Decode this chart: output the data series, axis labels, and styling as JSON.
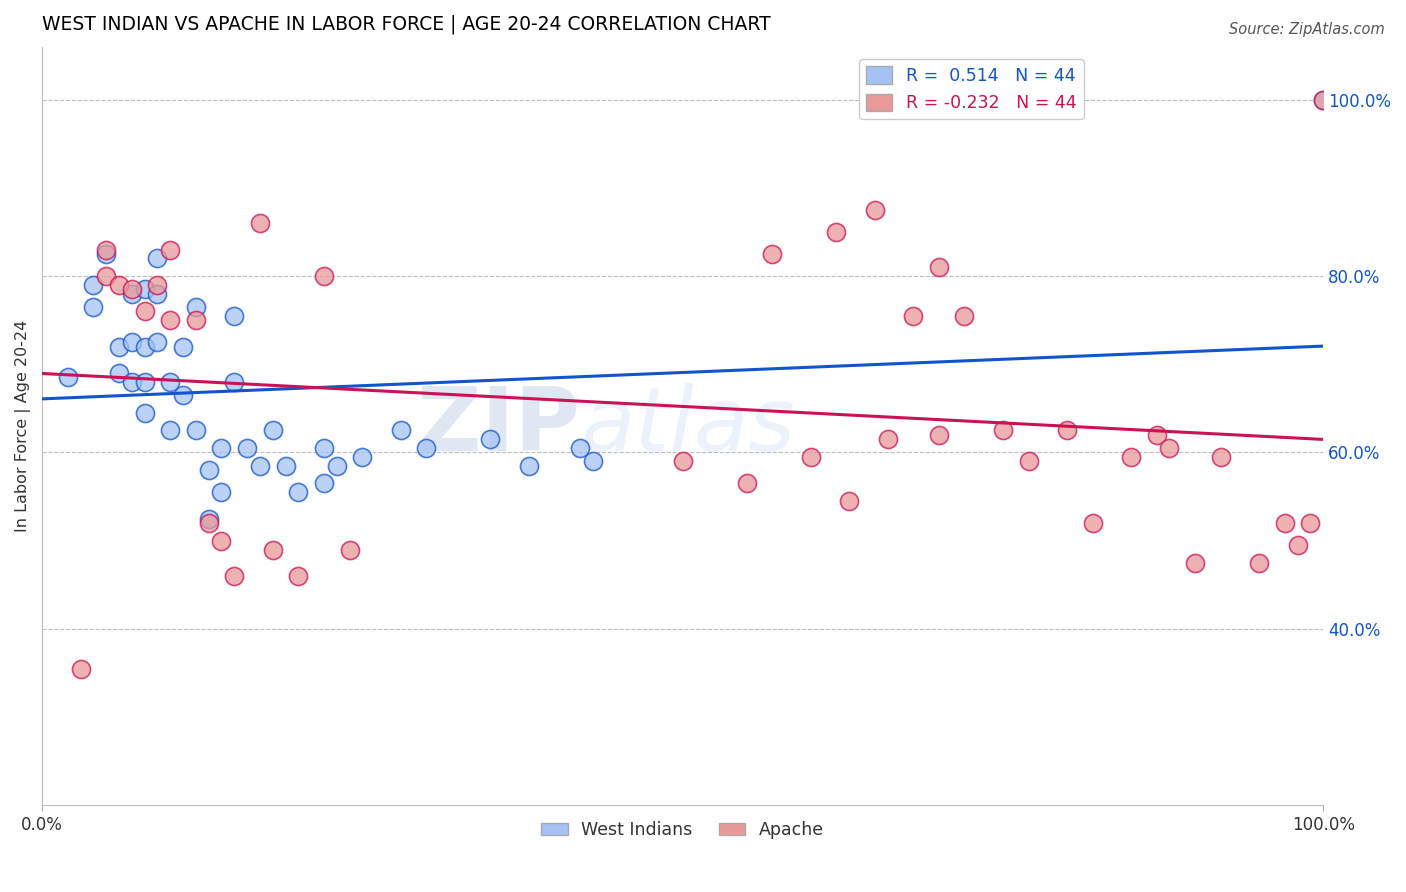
{
  "title": "WEST INDIAN VS APACHE IN LABOR FORCE | AGE 20-24 CORRELATION CHART",
  "source": "Source: ZipAtlas.com",
  "ylabel": "In Labor Force | Age 20-24",
  "xlim": [
    0.0,
    1.0
  ],
  "ylim": [
    0.2,
    1.06
  ],
  "ytick_labels_right": [
    "40.0%",
    "60.0%",
    "80.0%",
    "100.0%"
  ],
  "ytick_vals_right": [
    0.4,
    0.6,
    0.8,
    1.0
  ],
  "legend_blue_r": "0.514",
  "legend_blue_n": "44",
  "legend_pink_r": "-0.232",
  "legend_pink_n": "44",
  "legend_blue_label": "West Indians",
  "legend_pink_label": "Apache",
  "blue_color": "#a4c2f4",
  "pink_color": "#ea9999",
  "blue_line_color": "#1155cc",
  "pink_line_color": "#cc1155",
  "title_color": "#000000",
  "watermark_zip": "ZIP",
  "watermark_atlas": "atlas",
  "blue_scatter_x": [
    0.02,
    0.04,
    0.04,
    0.05,
    0.06,
    0.06,
    0.07,
    0.07,
    0.07,
    0.08,
    0.08,
    0.08,
    0.08,
    0.09,
    0.09,
    0.09,
    0.1,
    0.1,
    0.11,
    0.11,
    0.12,
    0.12,
    0.13,
    0.13,
    0.14,
    0.14,
    0.15,
    0.15,
    0.16,
    0.17,
    0.18,
    0.19,
    0.2,
    0.22,
    0.22,
    0.23,
    0.25,
    0.28,
    0.3,
    0.35,
    0.38,
    0.42,
    0.43,
    1.0
  ],
  "blue_scatter_y": [
    0.685,
    0.79,
    0.765,
    0.825,
    0.72,
    0.69,
    0.78,
    0.725,
    0.68,
    0.785,
    0.72,
    0.68,
    0.645,
    0.82,
    0.78,
    0.725,
    0.68,
    0.625,
    0.72,
    0.665,
    0.765,
    0.625,
    0.58,
    0.525,
    0.605,
    0.555,
    0.755,
    0.68,
    0.605,
    0.585,
    0.625,
    0.585,
    0.555,
    0.605,
    0.565,
    0.585,
    0.595,
    0.625,
    0.605,
    0.615,
    0.585,
    0.605,
    0.59,
    1.0
  ],
  "pink_scatter_x": [
    0.03,
    0.05,
    0.05,
    0.06,
    0.07,
    0.08,
    0.09,
    0.1,
    0.1,
    0.12,
    0.13,
    0.14,
    0.15,
    0.17,
    0.18,
    0.2,
    0.22,
    0.24,
    0.5,
    0.57,
    0.62,
    0.65,
    0.68,
    0.7,
    0.72,
    0.75,
    0.77,
    0.8,
    0.82,
    0.85,
    0.87,
    0.88,
    0.9,
    0.92,
    0.95,
    0.97,
    0.98,
    0.99,
    1.0,
    0.55,
    0.6,
    0.63,
    0.66,
    0.7
  ],
  "pink_scatter_y": [
    0.355,
    0.83,
    0.8,
    0.79,
    0.785,
    0.76,
    0.79,
    0.83,
    0.75,
    0.75,
    0.52,
    0.5,
    0.46,
    0.86,
    0.49,
    0.46,
    0.8,
    0.49,
    0.59,
    0.825,
    0.85,
    0.875,
    0.755,
    0.81,
    0.755,
    0.625,
    0.59,
    0.625,
    0.52,
    0.595,
    0.62,
    0.605,
    0.475,
    0.595,
    0.475,
    0.52,
    0.495,
    0.52,
    1.0,
    0.565,
    0.595,
    0.545,
    0.615,
    0.62
  ]
}
